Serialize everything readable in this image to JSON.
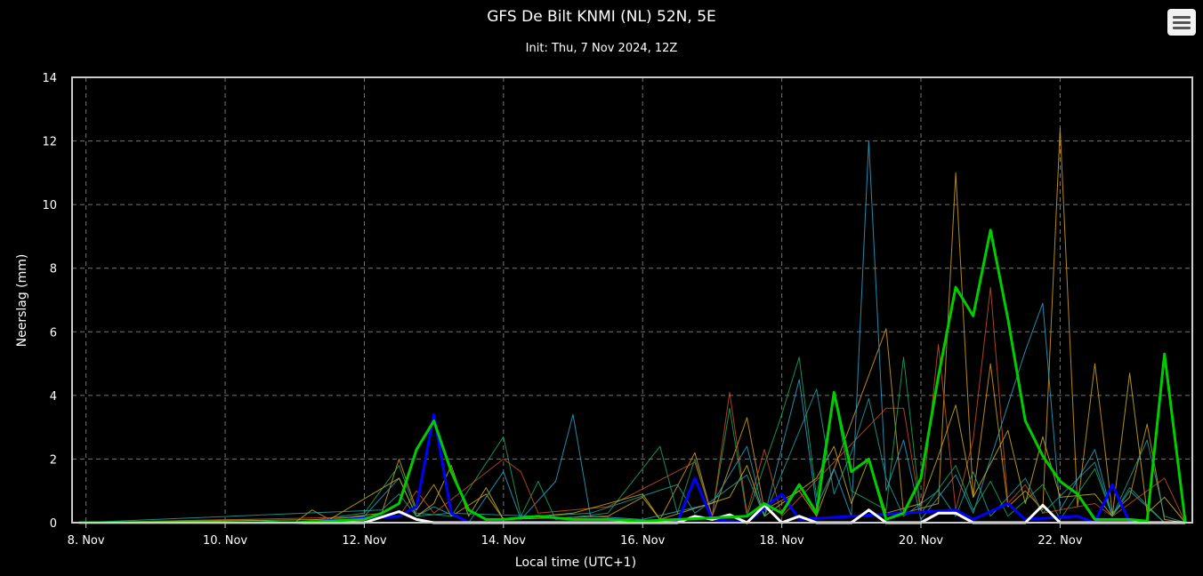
{
  "chart_data": {
    "type": "line",
    "title": "GFS De Bilt KNMI (NL) 52N, 5E",
    "subtitle": "Init: Thu, 7 Nov 2024, 12Z",
    "xlabel": "Local time (UTC+1)",
    "ylabel": "Neerslag (mm)",
    "ylim": [
      0,
      14
    ],
    "yticks": [
      "0",
      "2",
      "4",
      "6",
      "8",
      "10",
      "12",
      "14"
    ],
    "xlim_days": [
      7.8,
      23.9
    ],
    "xticks": [
      {
        "label": "8. Nov",
        "day": 8
      },
      {
        "label": "10. Nov",
        "day": 10
      },
      {
        "label": "12. Nov",
        "day": 12
      },
      {
        "label": "14. Nov",
        "day": 14
      },
      {
        "label": "16. Nov",
        "day": 16
      },
      {
        "label": "18. Nov",
        "day": 18
      },
      {
        "label": "20. Nov",
        "day": 20
      },
      {
        "label": "22. Nov",
        "day": 22
      }
    ],
    "grid": true,
    "background": "#000000",
    "series_colors": {
      "main": "#00cc00",
      "white": "#ffffff",
      "blue": "#0000ff",
      "members": [
        "#d4a017",
        "#2aa3c8",
        "#18a860",
        "#c85020",
        "#c8b020",
        "#20a0a0"
      ]
    },
    "series": [
      {
        "color": "#00cc00",
        "width": 3,
        "points": [
          [
            11.0,
            0
          ],
          [
            11.5,
            0.05
          ],
          [
            12.0,
            0.1
          ],
          [
            12.25,
            0.3
          ],
          [
            12.5,
            0.6
          ],
          [
            12.75,
            2.3
          ],
          [
            13.0,
            3.2
          ],
          [
            13.25,
            1.6
          ],
          [
            13.5,
            0.4
          ],
          [
            13.75,
            0.1
          ],
          [
            14.0,
            0.1
          ],
          [
            14.25,
            0.15
          ],
          [
            14.5,
            0.2
          ],
          [
            15.0,
            0.1
          ],
          [
            15.5,
            0.1
          ],
          [
            16.0,
            0.05
          ],
          [
            16.5,
            0.1
          ],
          [
            17.0,
            0.15
          ],
          [
            17.5,
            0.2
          ],
          [
            17.75,
            0.6
          ],
          [
            18.0,
            0.3
          ],
          [
            18.25,
            1.2
          ],
          [
            18.5,
            0.3
          ],
          [
            18.75,
            4.1
          ],
          [
            19.0,
            1.6
          ],
          [
            19.25,
            2.0
          ],
          [
            19.5,
            0.1
          ],
          [
            19.75,
            0.3
          ],
          [
            20.0,
            1.4
          ],
          [
            20.25,
            4.6
          ],
          [
            20.5,
            7.4
          ],
          [
            20.75,
            6.5
          ],
          [
            21.0,
            9.2
          ],
          [
            21.25,
            6.4
          ],
          [
            21.5,
            3.2
          ],
          [
            21.75,
            2.1
          ],
          [
            22.0,
            1.3
          ],
          [
            22.25,
            0.9
          ],
          [
            22.5,
            0.1
          ],
          [
            23.0,
            0.1
          ],
          [
            23.25,
            0.05
          ],
          [
            23.5,
            5.3
          ]
        ]
      },
      {
        "color": "#ffffff",
        "width": 3,
        "points": [
          [
            11.0,
            0
          ],
          [
            12.0,
            0
          ],
          [
            12.5,
            0.35
          ],
          [
            12.75,
            0.1
          ],
          [
            13.0,
            0
          ],
          [
            14.0,
            0
          ],
          [
            16.5,
            0
          ],
          [
            16.75,
            0.2
          ],
          [
            17.0,
            0.1
          ],
          [
            17.25,
            0.25
          ],
          [
            17.5,
            0
          ],
          [
            17.75,
            0.55
          ],
          [
            18.0,
            0
          ],
          [
            18.25,
            0.2
          ],
          [
            18.5,
            0
          ],
          [
            19.0,
            0
          ],
          [
            19.25,
            0.4
          ],
          [
            19.5,
            0
          ],
          [
            20.0,
            0
          ],
          [
            20.25,
            0.3
          ],
          [
            20.5,
            0.3
          ],
          [
            20.75,
            0
          ],
          [
            21.5,
            0
          ],
          [
            21.75,
            0.55
          ],
          [
            22.0,
            0
          ],
          [
            23.5,
            0
          ]
        ]
      },
      {
        "color": "#0000ff",
        "width": 3,
        "points": [
          [
            11.0,
            0
          ],
          [
            12.5,
            0.2
          ],
          [
            12.75,
            0.5
          ],
          [
            13.0,
            3.4
          ],
          [
            13.25,
            0.3
          ],
          [
            13.5,
            0
          ],
          [
            16.5,
            0
          ],
          [
            16.75,
            1.4
          ],
          [
            17.0,
            0.1
          ],
          [
            17.5,
            0
          ],
          [
            18.0,
            0.9
          ],
          [
            18.25,
            0.1
          ],
          [
            20.5,
            0.4
          ],
          [
            20.75,
            0.1
          ],
          [
            21.25,
            0.6
          ],
          [
            21.5,
            0.1
          ],
          [
            22.25,
            0.2
          ],
          [
            22.5,
            0
          ],
          [
            22.75,
            1.2
          ],
          [
            23.0,
            0
          ],
          [
            23.5,
            0
          ]
        ]
      },
      {
        "color": "#d4a017",
        "width": 1,
        "points": [
          [
            11.0,
            0
          ],
          [
            11.25,
            0.4
          ],
          [
            11.5,
            0.1
          ],
          [
            12.25,
            0.3
          ],
          [
            12.5,
            2.0
          ],
          [
            12.75,
            0.4
          ],
          [
            13.0,
            1.2
          ],
          [
            13.25,
            0.2
          ],
          [
            13.75,
            0.9
          ],
          [
            14.0,
            0.1
          ],
          [
            15.5,
            0.2
          ],
          [
            16.0,
            0.8
          ],
          [
            16.25,
            0.1
          ],
          [
            16.75,
            2.2
          ],
          [
            17.0,
            0.2
          ],
          [
            17.5,
            3.3
          ],
          [
            17.75,
            0.4
          ],
          [
            18.25,
            1.0
          ],
          [
            18.5,
            0.2
          ],
          [
            19.5,
            6.1
          ],
          [
            19.75,
            0.3
          ],
          [
            20.25,
            0.6
          ],
          [
            20.5,
            11.0
          ],
          [
            20.75,
            0.8
          ],
          [
            21.0,
            5.0
          ],
          [
            21.25,
            0.5
          ],
          [
            21.5,
            1.0
          ],
          [
            21.75,
            0.4
          ],
          [
            22.0,
            12.4
          ],
          [
            22.25,
            0.5
          ],
          [
            22.5,
            5.0
          ],
          [
            22.75,
            0.3
          ],
          [
            23.0,
            0.8
          ],
          [
            23.25,
            3.1
          ],
          [
            23.5,
            0.1
          ]
        ]
      },
      {
        "color": "#2aa3c8",
        "width": 1,
        "points": [
          [
            11.0,
            0
          ],
          [
            12.0,
            0.2
          ],
          [
            12.5,
            1.4
          ],
          [
            12.75,
            0.2
          ],
          [
            13.0,
            0.5
          ],
          [
            13.5,
            0
          ],
          [
            14.0,
            1.6
          ],
          [
            14.25,
            0.1
          ],
          [
            14.75,
            1.3
          ],
          [
            15.0,
            3.4
          ],
          [
            15.25,
            0.2
          ],
          [
            16.0,
            0.1
          ],
          [
            17.0,
            0.6
          ],
          [
            17.5,
            2.4
          ],
          [
            17.75,
            0.2
          ],
          [
            18.25,
            4.5
          ],
          [
            18.5,
            0.5
          ],
          [
            18.75,
            1.7
          ],
          [
            19.0,
            0.2
          ],
          [
            19.25,
            12.0
          ],
          [
            19.5,
            1.0
          ],
          [
            19.75,
            2.6
          ],
          [
            20.0,
            0.1
          ],
          [
            20.5,
            1.5
          ],
          [
            20.75,
            0.3
          ],
          [
            21.0,
            2.0
          ],
          [
            21.5,
            5.4
          ],
          [
            21.75,
            6.9
          ],
          [
            22.0,
            0.4
          ],
          [
            22.5,
            2.3
          ],
          [
            22.75,
            0.2
          ],
          [
            23.0,
            1.0
          ],
          [
            23.5,
            0
          ]
        ]
      },
      {
        "color": "#18a860",
        "width": 1,
        "points": [
          [
            10.25,
            0.1
          ],
          [
            11.0,
            0
          ],
          [
            12.0,
            0.3
          ],
          [
            12.5,
            1.8
          ],
          [
            12.75,
            0.3
          ],
          [
            13.25,
            0.2
          ],
          [
            14.0,
            2.7
          ],
          [
            14.25,
            0.2
          ],
          [
            14.5,
            1.3
          ],
          [
            14.75,
            0.1
          ],
          [
            15.5,
            0.3
          ],
          [
            16.25,
            2.4
          ],
          [
            16.5,
            0.3
          ],
          [
            16.75,
            2.0
          ],
          [
            17.0,
            0.2
          ],
          [
            17.25,
            3.6
          ],
          [
            17.5,
            0.2
          ],
          [
            18.0,
            3.4
          ],
          [
            18.25,
            5.2
          ],
          [
            18.5,
            0.8
          ],
          [
            18.75,
            4.1
          ],
          [
            19.0,
            1.0
          ],
          [
            19.5,
            0.4
          ],
          [
            19.75,
            5.2
          ],
          [
            20.0,
            0.3
          ],
          [
            20.5,
            1.8
          ],
          [
            20.75,
            0.4
          ],
          [
            21.0,
            1.3
          ],
          [
            21.25,
            0.2
          ],
          [
            21.75,
            1.2
          ],
          [
            22.0,
            0.1
          ],
          [
            22.5,
            1.7
          ],
          [
            22.75,
            0.2
          ],
          [
            23.0,
            1.1
          ],
          [
            23.5,
            0
          ]
        ]
      },
      {
        "color": "#c85020",
        "width": 1,
        "points": [
          [
            12.5,
            0.2
          ],
          [
            12.75,
            1.0
          ],
          [
            13.0,
            0.3
          ],
          [
            14.0,
            2.0
          ],
          [
            14.25,
            1.6
          ],
          [
            14.5,
            0.3
          ],
          [
            15.5,
            0.5
          ],
          [
            16.75,
            1.9
          ],
          [
            17.0,
            0.2
          ],
          [
            17.25,
            4.1
          ],
          [
            17.5,
            0.3
          ],
          [
            17.75,
            2.3
          ],
          [
            18.0,
            0.2
          ],
          [
            19.5,
            3.6
          ],
          [
            19.75,
            3.6
          ],
          [
            20.0,
            0.3
          ],
          [
            20.25,
            5.6
          ],
          [
            20.5,
            0.4
          ],
          [
            20.75,
            2.6
          ],
          [
            21.0,
            7.4
          ],
          [
            21.25,
            0.6
          ],
          [
            21.5,
            1.2
          ],
          [
            21.75,
            0.3
          ],
          [
            22.5,
            0.6
          ],
          [
            22.75,
            0.2
          ],
          [
            23.5,
            1.4
          ]
        ]
      },
      {
        "color": "#c8b020",
        "width": 1,
        "points": [
          [
            11.5,
            0.1
          ],
          [
            12.5,
            1.4
          ],
          [
            12.75,
            0.2
          ],
          [
            13.0,
            0.6
          ],
          [
            13.25,
            1.8
          ],
          [
            13.5,
            0.2
          ],
          [
            13.75,
            1.1
          ],
          [
            14.0,
            0.1
          ],
          [
            15.0,
            0.3
          ],
          [
            16.0,
            0.9
          ],
          [
            16.25,
            0.1
          ],
          [
            17.25,
            0.8
          ],
          [
            17.5,
            1.8
          ],
          [
            17.75,
            0.2
          ],
          [
            18.5,
            1.4
          ],
          [
            18.75,
            2.4
          ],
          [
            19.0,
            0.6
          ],
          [
            19.25,
            2.0
          ],
          [
            19.5,
            0.3
          ],
          [
            20.0,
            0.6
          ],
          [
            20.25,
            2.1
          ],
          [
            20.5,
            3.7
          ],
          [
            20.75,
            0.8
          ],
          [
            21.25,
            2.9
          ],
          [
            21.5,
            0.6
          ],
          [
            21.75,
            2.7
          ],
          [
            22.0,
            0.8
          ],
          [
            22.5,
            0.9
          ],
          [
            22.75,
            0.2
          ],
          [
            23.0,
            4.7
          ],
          [
            23.25,
            0.3
          ],
          [
            23.5,
            0.8
          ]
        ]
      },
      {
        "color": "#20a0a0",
        "width": 1,
        "points": [
          [
            12.25,
            0.4
          ],
          [
            12.5,
            0.9
          ],
          [
            12.75,
            0.2
          ],
          [
            13.25,
            0.3
          ],
          [
            14.5,
            0.2
          ],
          [
            15.25,
            0.3
          ],
          [
            16.5,
            1.2
          ],
          [
            16.75,
            0.3
          ],
          [
            17.5,
            1.5
          ],
          [
            17.75,
            0.2
          ],
          [
            18.5,
            4.2
          ],
          [
            18.75,
            0.9
          ],
          [
            19.0,
            2.2
          ],
          [
            19.25,
            3.9
          ],
          [
            19.5,
            1.4
          ],
          [
            19.75,
            0.2
          ],
          [
            20.25,
            1.0
          ],
          [
            20.5,
            0.2
          ],
          [
            20.75,
            1.6
          ],
          [
            21.0,
            0.2
          ],
          [
            21.5,
            1.4
          ],
          [
            21.75,
            0.3
          ],
          [
            22.5,
            1.9
          ],
          [
            22.75,
            0.2
          ],
          [
            23.25,
            2.6
          ],
          [
            23.5,
            0.2
          ]
        ]
      }
    ]
  },
  "menu": {
    "icon": "hamburger-menu-icon"
  }
}
